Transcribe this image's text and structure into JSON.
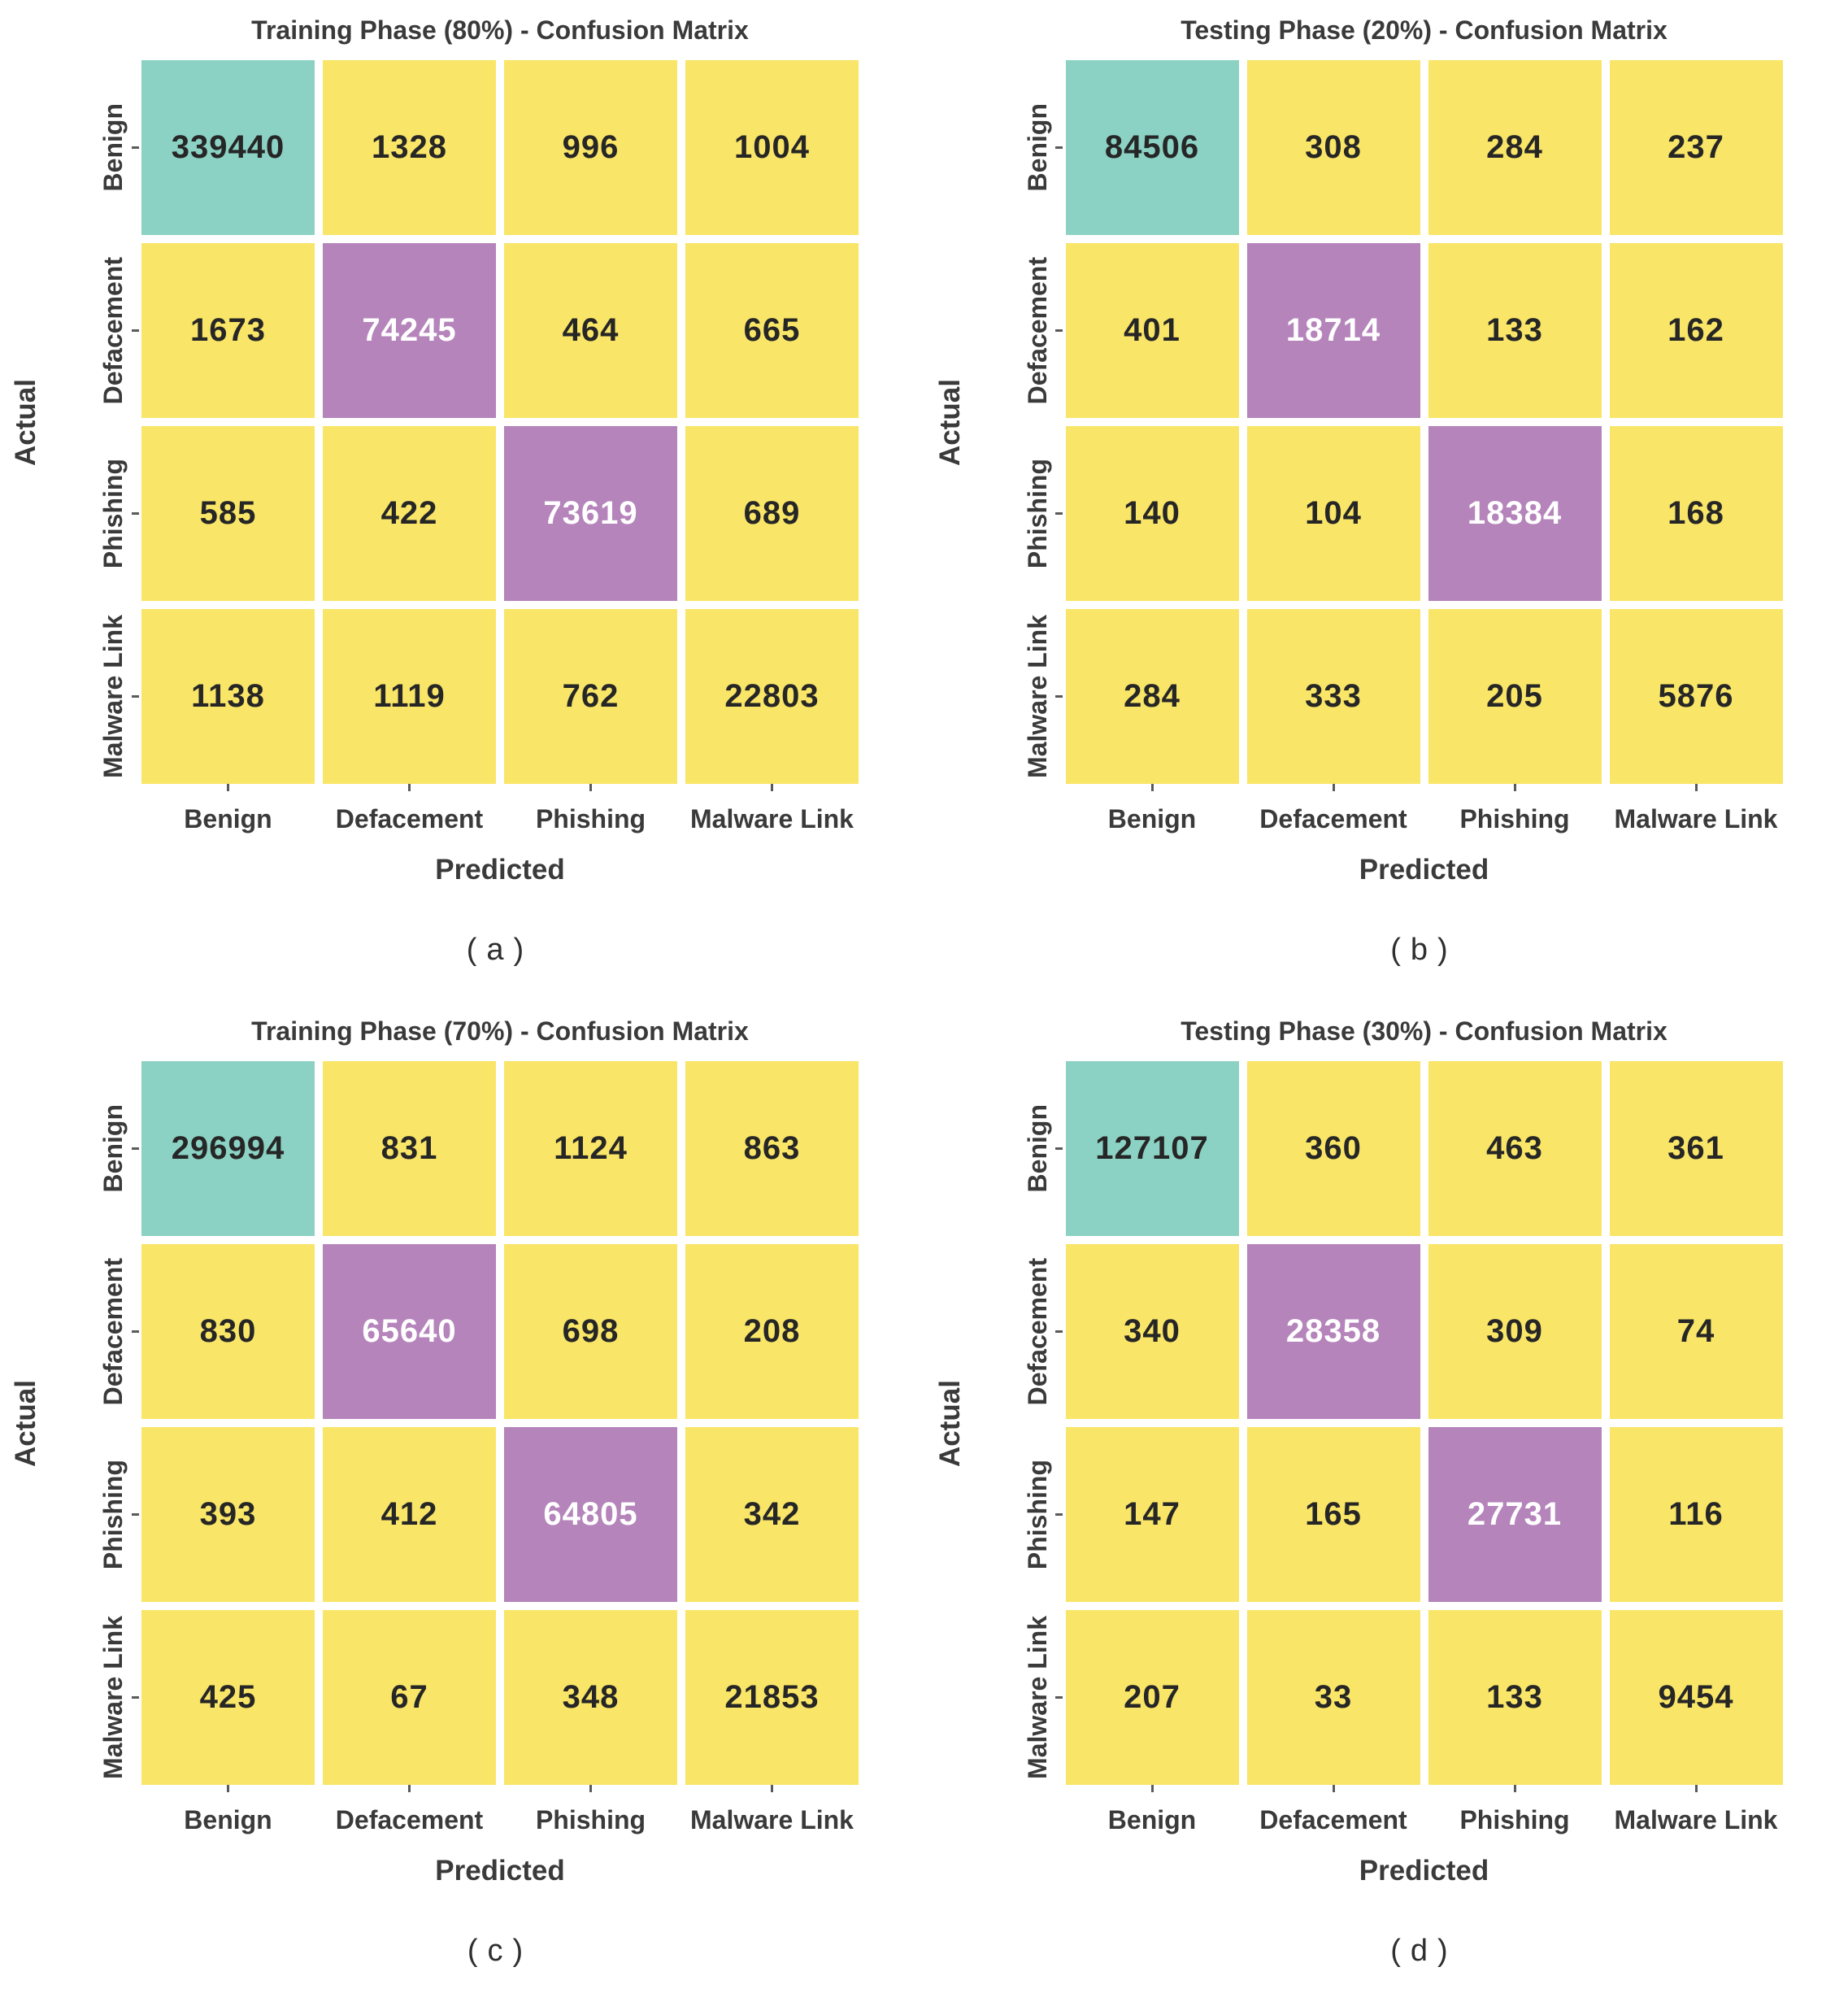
{
  "figure": {
    "y_axis_label": "Actual",
    "x_axis_label": "Predicted",
    "classes": [
      "Benign",
      "Defacement",
      "Phishing",
      "Malware Link"
    ],
    "colors": {
      "background": "#ffffff",
      "teal": "#8bd2c4",
      "yellow": "#f9e567",
      "purple": "#b584bb",
      "label": "#3a3a3a",
      "number_dark": "#262626",
      "number_light": "#ffffff",
      "tick": "#5a5a5a"
    },
    "cell_colors": [
      [
        "teal",
        "yellow",
        "yellow",
        "yellow"
      ],
      [
        "yellow",
        "purple",
        "yellow",
        "yellow"
      ],
      [
        "yellow",
        "yellow",
        "purple",
        "yellow"
      ],
      [
        "yellow",
        "yellow",
        "yellow",
        "yellow"
      ]
    ]
  },
  "chart_data": [
    {
      "type": "heatmap",
      "id": "a",
      "title": "Training Phase (80%) - Confusion Matrix",
      "caption": "(a)",
      "xlabel": "Predicted",
      "ylabel": "Actual",
      "x_categories": [
        "Benign",
        "Defacement",
        "Phishing",
        "Malware Link"
      ],
      "y_categories": [
        "Benign",
        "Defacement",
        "Phishing",
        "Malware Link"
      ],
      "values": [
        [
          339440,
          1328,
          996,
          1004
        ],
        [
          1673,
          74245,
          464,
          665
        ],
        [
          585,
          422,
          73619,
          689
        ],
        [
          1138,
          1119,
          762,
          22803
        ]
      ]
    },
    {
      "type": "heatmap",
      "id": "b",
      "title": "Testing Phase (20%) - Confusion Matrix",
      "caption": "(b)",
      "xlabel": "Predicted",
      "ylabel": "Actual",
      "x_categories": [
        "Benign",
        "Defacement",
        "Phishing",
        "Malware Link"
      ],
      "y_categories": [
        "Benign",
        "Defacement",
        "Phishing",
        "Malware Link"
      ],
      "values": [
        [
          84506,
          308,
          284,
          237
        ],
        [
          401,
          18714,
          133,
          162
        ],
        [
          140,
          104,
          18384,
          168
        ],
        [
          284,
          333,
          205,
          5876
        ]
      ]
    },
    {
      "type": "heatmap",
      "id": "c",
      "title": "Training Phase (70%) - Confusion Matrix",
      "caption": "(c)",
      "xlabel": "Predicted",
      "ylabel": "Actual",
      "x_categories": [
        "Benign",
        "Defacement",
        "Phishing",
        "Malware Link"
      ],
      "y_categories": [
        "Benign",
        "Defacement",
        "Phishing",
        "Malware Link"
      ],
      "values": [
        [
          296994,
          831,
          1124,
          863
        ],
        [
          830,
          65640,
          698,
          208
        ],
        [
          393,
          412,
          64805,
          342
        ],
        [
          425,
          67,
          348,
          21853
        ]
      ]
    },
    {
      "type": "heatmap",
      "id": "d",
      "title": "Testing Phase (30%) - Confusion Matrix",
      "caption": "(d)",
      "xlabel": "Predicted",
      "ylabel": "Actual",
      "x_categories": [
        "Benign",
        "Defacement",
        "Phishing",
        "Malware Link"
      ],
      "y_categories": [
        "Benign",
        "Defacement",
        "Phishing",
        "Malware Link"
      ],
      "values": [
        [
          127107,
          360,
          463,
          361
        ],
        [
          340,
          28358,
          309,
          74
        ],
        [
          147,
          165,
          27731,
          116
        ],
        [
          207,
          33,
          133,
          9454
        ]
      ]
    }
  ]
}
